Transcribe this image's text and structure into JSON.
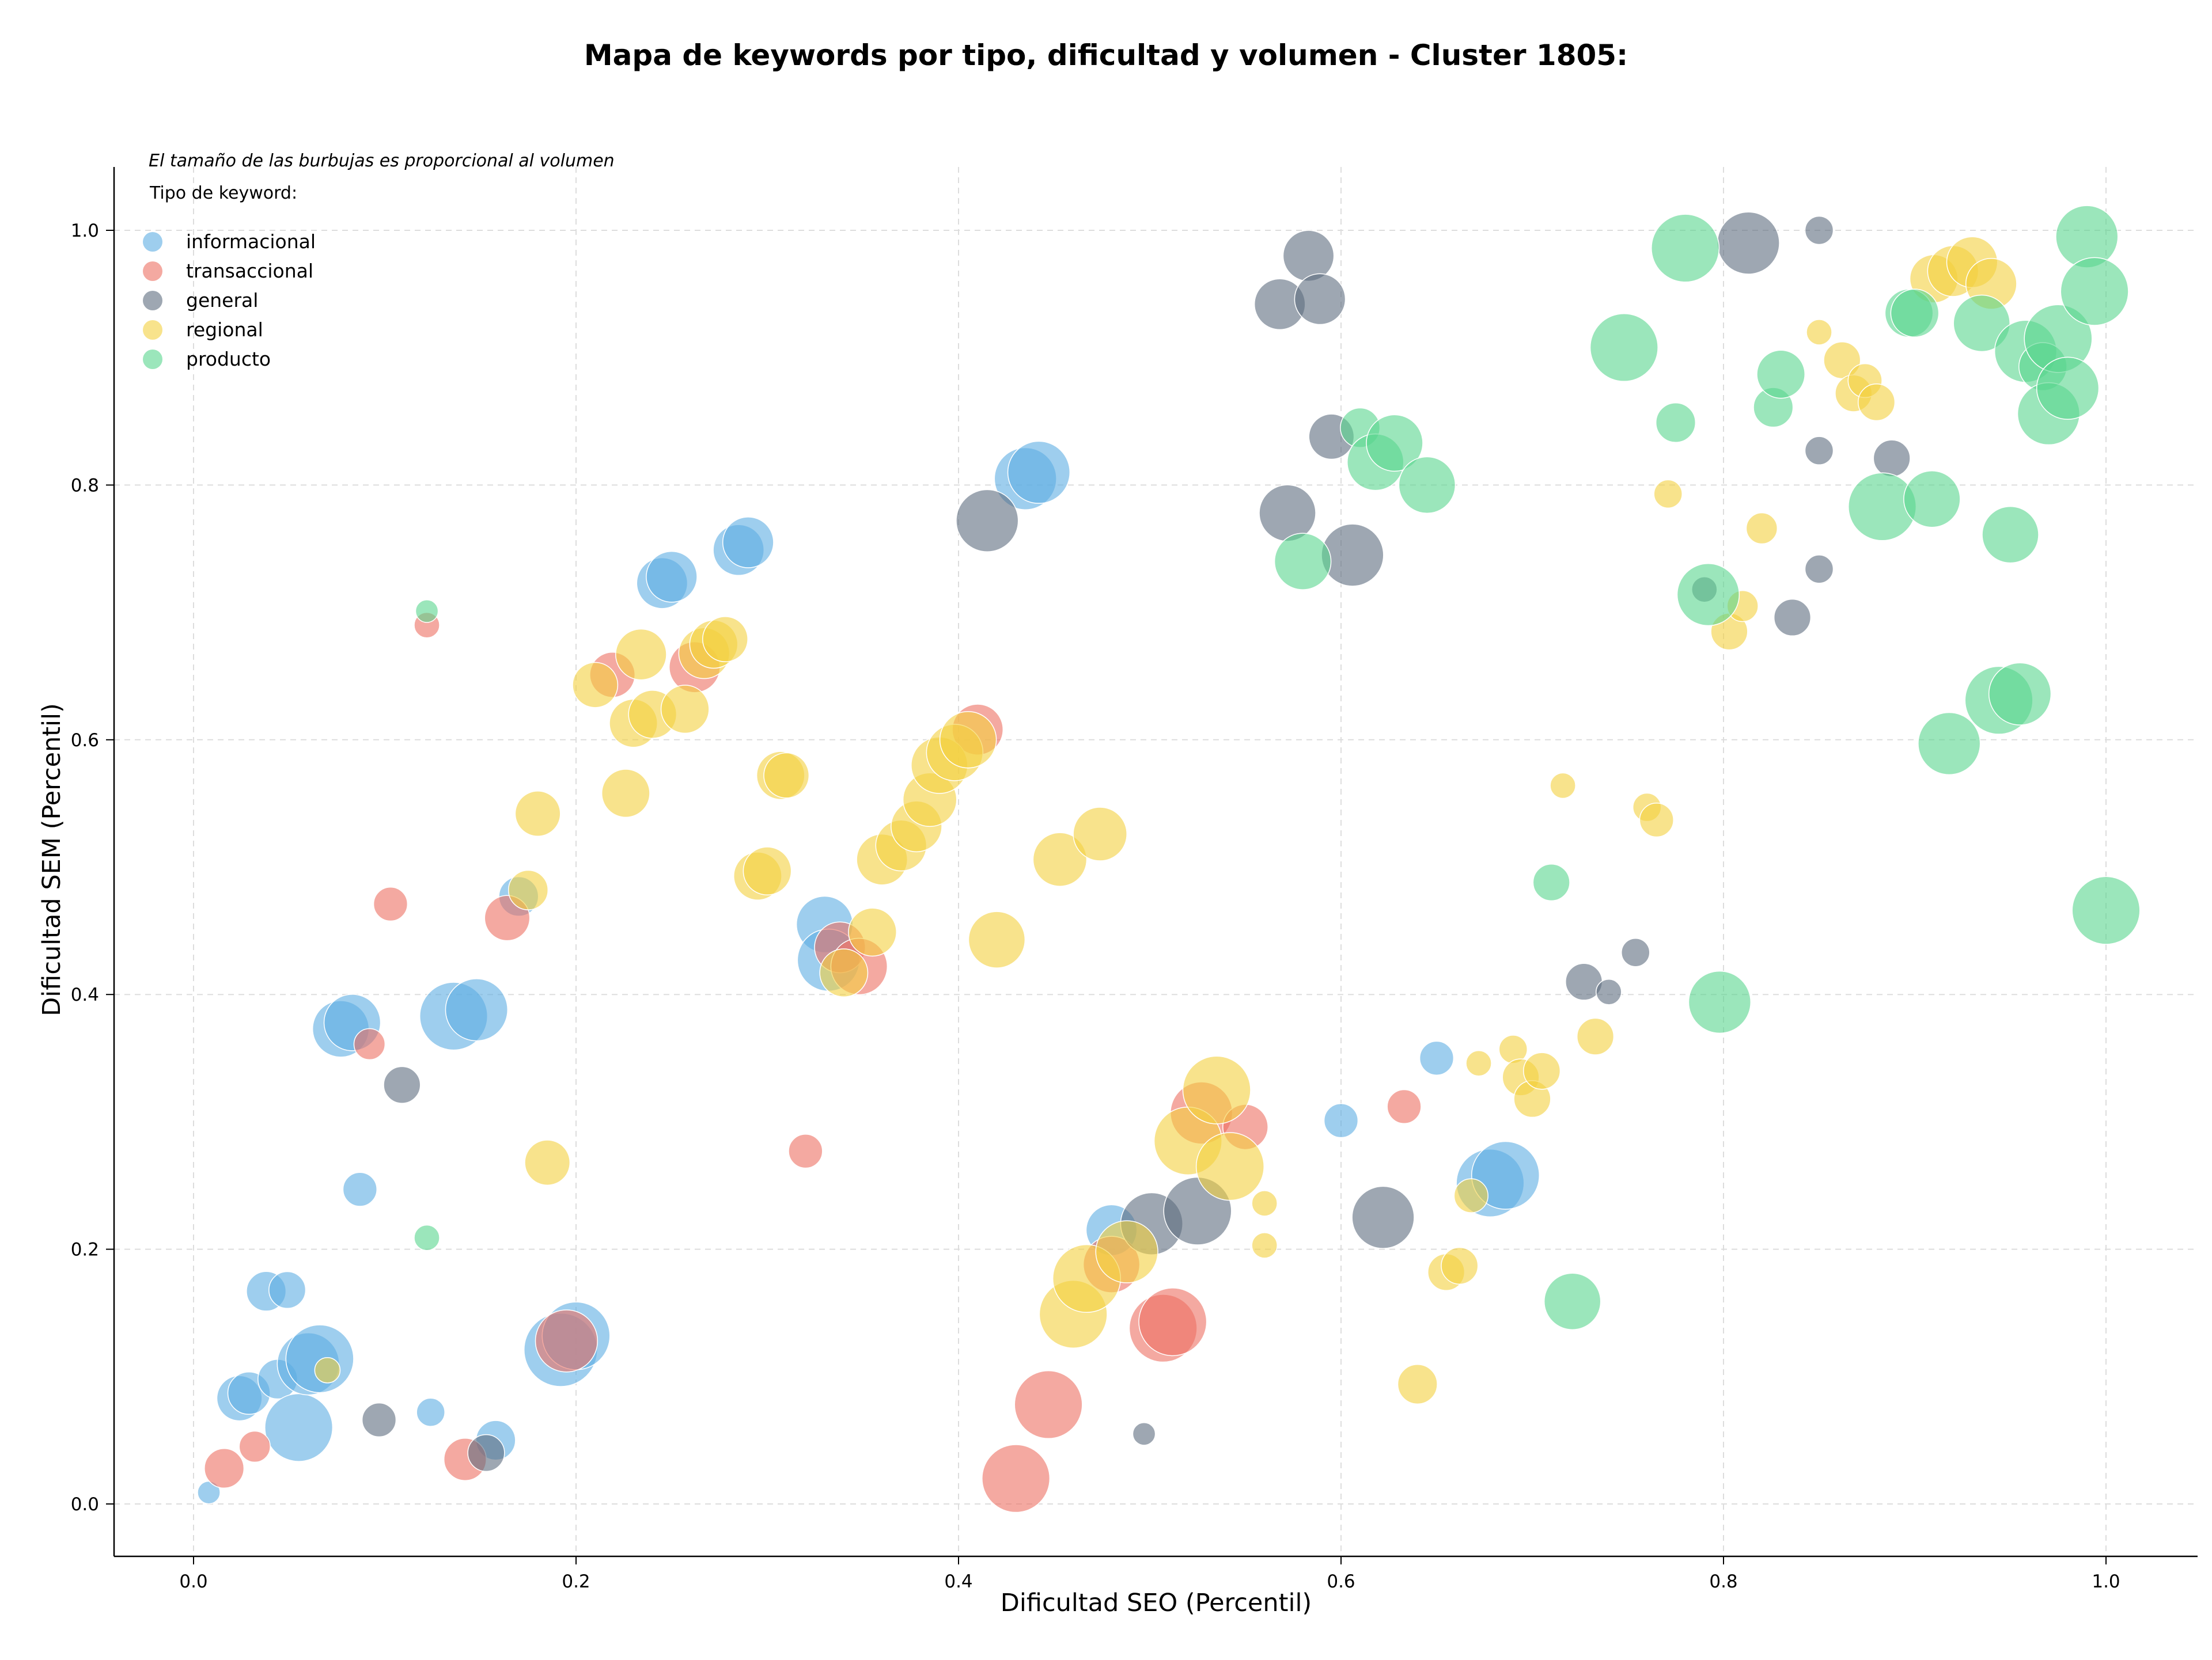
{
  "chart_data": {
    "type": "scatter",
    "title": "Mapa de keywords por tipo, dificultad y volumen - Cluster 1805:",
    "xlabel": "Dificultad SEO (Percentil)",
    "ylabel": "Dificultad SEM (Percentil)",
    "xlim": [
      -0.04,
      1.05
    ],
    "ylim": [
      -0.04,
      1.05
    ],
    "xticks": [
      0.0,
      0.2,
      0.4,
      0.6,
      0.8,
      1.0
    ],
    "yticks": [
      0.0,
      0.2,
      0.4,
      0.6,
      0.8,
      1.0
    ],
    "xtick_labels": [
      "0.0",
      "0.2",
      "0.4",
      "0.6",
      "0.8",
      "1.0"
    ],
    "ytick_labels": [
      "0.0",
      "0.2",
      "0.4",
      "0.6",
      "0.8",
      "1.0"
    ],
    "grid": true,
    "legend_position": "top-left",
    "note": "El tamaño de las burbujas es proporcional al volumen",
    "legend_title": "Tipo de keyword:",
    "series": [
      {
        "name": "informacional",
        "color": "#5DADE2",
        "points": [
          [
            0.008,
            0.009,
            8
          ],
          [
            0.024,
            0.083,
            16
          ],
          [
            0.029,
            0.087,
            15
          ],
          [
            0.038,
            0.167,
            14
          ],
          [
            0.044,
            0.098,
            14
          ],
          [
            0.049,
            0.168,
            13
          ],
          [
            0.055,
            0.06,
            24
          ],
          [
            0.06,
            0.11,
            22
          ],
          [
            0.066,
            0.114,
            24
          ],
          [
            0.077,
            0.373,
            20
          ],
          [
            0.083,
            0.378,
            20
          ],
          [
            0.087,
            0.247,
            12
          ],
          [
            0.124,
            0.072,
            10
          ],
          [
            0.136,
            0.383,
            24
          ],
          [
            0.148,
            0.388,
            22
          ],
          [
            0.158,
            0.05,
            14
          ],
          [
            0.17,
            0.477,
            14
          ],
          [
            0.192,
            0.121,
            26
          ],
          [
            0.2,
            0.132,
            24
          ],
          [
            0.245,
            0.723,
            18
          ],
          [
            0.25,
            0.728,
            18
          ],
          [
            0.285,
            0.749,
            18
          ],
          [
            0.29,
            0.755,
            18
          ],
          [
            0.33,
            0.455,
            20
          ],
          [
            0.332,
            0.427,
            22
          ],
          [
            0.435,
            0.805,
            22
          ],
          [
            0.442,
            0.81,
            22
          ],
          [
            0.48,
            0.215,
            18
          ],
          [
            0.6,
            0.301,
            12
          ],
          [
            0.65,
            0.35,
            12
          ],
          [
            0.678,
            0.252,
            24
          ],
          [
            0.686,
            0.258,
            24
          ]
        ]
      },
      {
        "name": "transaccional",
        "color": "#EC7063",
        "points": [
          [
            0.016,
            0.028,
            14
          ],
          [
            0.032,
            0.045,
            11
          ],
          [
            0.092,
            0.361,
            11
          ],
          [
            0.103,
            0.471,
            12
          ],
          [
            0.122,
            0.69,
            9
          ],
          [
            0.142,
            0.035,
            15
          ],
          [
            0.164,
            0.46,
            16
          ],
          [
            0.195,
            0.128,
            22
          ],
          [
            0.219,
            0.651,
            16
          ],
          [
            0.262,
            0.657,
            18
          ],
          [
            0.32,
            0.277,
            12
          ],
          [
            0.338,
            0.437,
            18
          ],
          [
            0.348,
            0.422,
            20
          ],
          [
            0.41,
            0.608,
            18
          ],
          [
            0.43,
            0.02,
            24
          ],
          [
            0.447,
            0.078,
            24
          ],
          [
            0.48,
            0.188,
            20
          ],
          [
            0.507,
            0.138,
            24
          ],
          [
            0.512,
            0.143,
            24
          ],
          [
            0.527,
            0.307,
            22
          ],
          [
            0.55,
            0.296,
            16
          ],
          [
            0.633,
            0.312,
            12
          ]
        ]
      },
      {
        "name": "general",
        "color": "#5D6D7E",
        "points": [
          [
            0.097,
            0.066,
            12
          ],
          [
            0.109,
            0.329,
            13
          ],
          [
            0.153,
            0.04,
            13
          ],
          [
            0.415,
            0.772,
            22
          ],
          [
            0.497,
            0.055,
            8
          ],
          [
            0.501,
            0.22,
            22
          ],
          [
            0.525,
            0.23,
            24
          ],
          [
            0.568,
            0.942,
            18
          ],
          [
            0.583,
            0.98,
            18
          ],
          [
            0.589,
            0.946,
            18
          ],
          [
            0.595,
            0.838,
            16
          ],
          [
            0.572,
            0.778,
            20
          ],
          [
            0.606,
            0.745,
            22
          ],
          [
            0.622,
            0.225,
            22
          ],
          [
            0.727,
            0.41,
            13
          ],
          [
            0.74,
            0.402,
            9
          ],
          [
            0.754,
            0.433,
            10
          ],
          [
            0.813,
            0.99,
            22
          ],
          [
            0.836,
            0.696,
            13
          ],
          [
            0.85,
            1.0,
            10
          ],
          [
            0.85,
            0.827,
            10
          ],
          [
            0.85,
            0.734,
            10
          ],
          [
            0.888,
            0.821,
            13
          ],
          [
            0.79,
            0.718,
            9
          ]
        ]
      },
      {
        "name": "regional",
        "color": "#F4D03F",
        "points": [
          [
            0.07,
            0.105,
            9
          ],
          [
            0.175,
            0.482,
            14
          ],
          [
            0.18,
            0.542,
            16
          ],
          [
            0.185,
            0.268,
            16
          ],
          [
            0.21,
            0.643,
            16
          ],
          [
            0.226,
            0.558,
            17
          ],
          [
            0.23,
            0.613,
            17
          ],
          [
            0.234,
            0.667,
            18
          ],
          [
            0.24,
            0.62,
            17
          ],
          [
            0.257,
            0.624,
            17
          ],
          [
            0.267,
            0.668,
            18
          ],
          [
            0.272,
            0.675,
            17
          ],
          [
            0.278,
            0.679,
            16
          ],
          [
            0.295,
            0.493,
            17
          ],
          [
            0.3,
            0.497,
            17
          ],
          [
            0.307,
            0.572,
            17
          ],
          [
            0.31,
            0.572,
            16
          ],
          [
            0.34,
            0.417,
            17
          ],
          [
            0.355,
            0.449,
            17
          ],
          [
            0.36,
            0.506,
            18
          ],
          [
            0.37,
            0.517,
            18
          ],
          [
            0.378,
            0.532,
            18
          ],
          [
            0.385,
            0.553,
            19
          ],
          [
            0.39,
            0.58,
            20
          ],
          [
            0.398,
            0.59,
            20
          ],
          [
            0.405,
            0.6,
            20
          ],
          [
            0.42,
            0.443,
            20
          ],
          [
            0.453,
            0.506,
            19
          ],
          [
            0.474,
            0.526,
            19
          ],
          [
            0.46,
            0.149,
            24
          ],
          [
            0.467,
            0.177,
            24
          ],
          [
            0.488,
            0.198,
            22
          ],
          [
            0.52,
            0.285,
            24
          ],
          [
            0.535,
            0.325,
            24
          ],
          [
            0.542,
            0.265,
            24
          ],
          [
            0.56,
            0.236,
            9
          ],
          [
            0.56,
            0.203,
            9
          ],
          [
            0.64,
            0.094,
            14
          ],
          [
            0.655,
            0.182,
            13
          ],
          [
            0.662,
            0.187,
            13
          ],
          [
            0.668,
            0.242,
            12
          ],
          [
            0.672,
            0.346,
            9
          ],
          [
            0.69,
            0.357,
            10
          ],
          [
            0.694,
            0.335,
            13
          ],
          [
            0.7,
            0.318,
            13
          ],
          [
            0.705,
            0.34,
            13
          ],
          [
            0.733,
            0.367,
            13
          ],
          [
            0.716,
            0.564,
            9
          ],
          [
            0.76,
            0.547,
            10
          ],
          [
            0.765,
            0.537,
            12
          ],
          [
            0.771,
            0.793,
            10
          ],
          [
            0.803,
            0.685,
            13
          ],
          [
            0.81,
            0.705,
            11
          ],
          [
            0.82,
            0.766,
            11
          ],
          [
            0.85,
            0.92,
            9
          ],
          [
            0.862,
            0.898,
            13
          ],
          [
            0.868,
            0.872,
            13
          ],
          [
            0.874,
            0.882,
            12
          ],
          [
            0.88,
            0.865,
            13
          ],
          [
            0.91,
            0.962,
            17
          ],
          [
            0.92,
            0.968,
            18
          ],
          [
            0.93,
            0.975,
            18
          ],
          [
            0.94,
            0.958,
            18
          ]
        ]
      },
      {
        "name": "producto",
        "color": "#58D68D",
        "points": [
          [
            0.122,
            0.701,
            8
          ],
          [
            0.122,
            0.209,
            9
          ],
          [
            0.58,
            0.74,
            20
          ],
          [
            0.61,
            0.845,
            14
          ],
          [
            0.618,
            0.818,
            20
          ],
          [
            0.628,
            0.833,
            20
          ],
          [
            0.645,
            0.8,
            20
          ],
          [
            0.71,
            0.488,
            13
          ],
          [
            0.721,
            0.159,
            20
          ],
          [
            0.748,
            0.908,
            24
          ],
          [
            0.775,
            0.849,
            14
          ],
          [
            0.78,
            0.986,
            24
          ],
          [
            0.792,
            0.714,
            22
          ],
          [
            0.798,
            0.394,
            22
          ],
          [
            0.826,
            0.861,
            14
          ],
          [
            0.83,
            0.887,
            17
          ],
          [
            0.883,
            0.783,
            24
          ],
          [
            0.897,
            0.935,
            17
          ],
          [
            0.9,
            0.935,
            17
          ],
          [
            0.909,
            0.789,
            20
          ],
          [
            0.918,
            0.597,
            22
          ],
          [
            0.935,
            0.927,
            20
          ],
          [
            0.944,
            0.631,
            24
          ],
          [
            0.955,
            0.636,
            22
          ],
          [
            0.95,
            0.761,
            20
          ],
          [
            0.958,
            0.905,
            22
          ],
          [
            0.967,
            0.893,
            17
          ],
          [
            0.97,
            0.856,
            22
          ],
          [
            0.975,
            0.915,
            24
          ],
          [
            0.98,
            0.876,
            22
          ],
          [
            0.99,
            0.995,
            22
          ],
          [
            0.994,
            0.952,
            24
          ],
          [
            1.0,
            0.466,
            24
          ]
        ]
      }
    ]
  }
}
